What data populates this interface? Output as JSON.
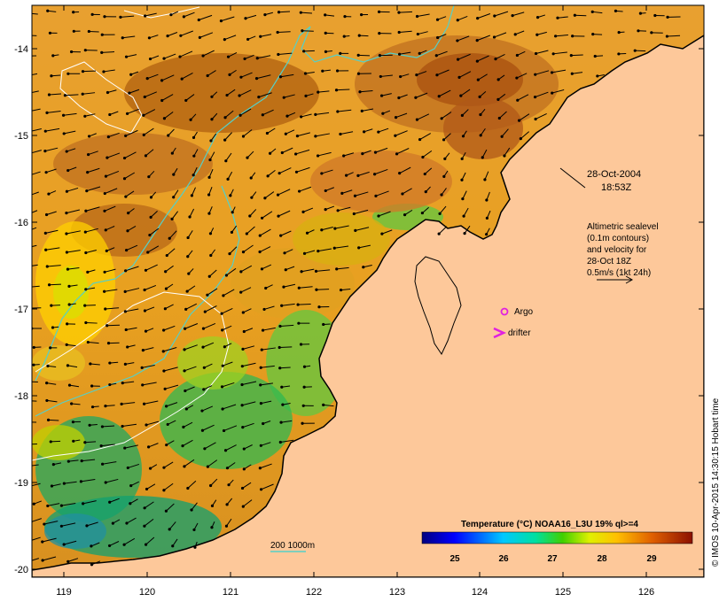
{
  "map": {
    "date": "28-Oct-2004",
    "time": "18:53Z",
    "altimetry_note": [
      "Altimetric sealevel",
      "(0.1m contours)",
      "and velocity for",
      "28-Oct 18Z"
    ],
    "velocity_scale_label": "0.5m/s (1kt 24h)",
    "argo_label": "Argo",
    "drifter_label": "drifter",
    "bathymetry_label": "200  1000m",
    "credit": "© IMOS 10-Apr-2015 14:30:15 Hobart time",
    "lon_ticks": [
      "119",
      "120",
      "121",
      "122",
      "123",
      "124",
      "125",
      "126"
    ],
    "lat_ticks": [
      "-14",
      "-15",
      "-16",
      "-17",
      "-18",
      "-19",
      "-20"
    ],
    "colorbar": {
      "title": "Temperature (°C) NOAA16_L3U 19% ql>=4",
      "ticks": [
        "25",
        "26",
        "27",
        "28",
        "29"
      ]
    },
    "colors": {
      "land": "#fdc89a",
      "argo": "#e020e0",
      "drifter": "#e020e0",
      "contour_200m": "#55d0c8",
      "sealevel_contour": "#ffffff"
    }
  }
}
